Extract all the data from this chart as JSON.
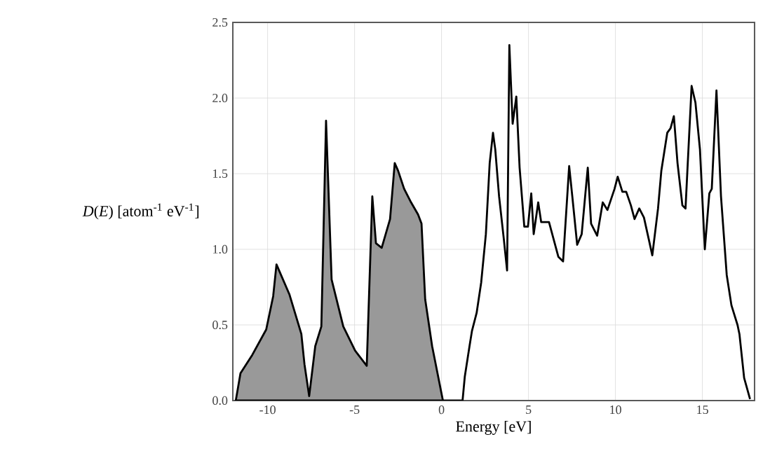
{
  "chart_data": {
    "type": "line",
    "xlabel": "Energy [eV]",
    "ylabel": "*D*(*E*) [atom$^{-1}$ eV$^{-1}$]",
    "xlim": [
      -12,
      18
    ],
    "ylim": [
      0,
      2.5
    ],
    "xticks": [
      -10,
      -5,
      0,
      5,
      10,
      15
    ],
    "yticks": [
      {
        "value": 0,
        "label": "0.0"
      },
      0.5,
      {
        "value": 1,
        "label": "1.0"
      },
      1.5,
      {
        "value": 2,
        "label": "2.0"
      },
      2.5
    ],
    "grid": true,
    "series": [
      {
        "type": "area",
        "color": "#999999",
        "x": [
          -11.83,
          -11.56,
          -10.89,
          -10.08,
          -9.68,
          -9.49,
          -8.74,
          -8.06,
          -7.88,
          -7.61,
          -7.26,
          -6.91,
          -6.64,
          -6.32,
          -5.65,
          -4.97,
          -4.3,
          -3.98,
          -3.77,
          -3.44,
          -2.96,
          -2.69,
          -2.5,
          -2.15,
          -1.75,
          -1.35,
          -1.15,
          -0.94,
          -0.54,
          0.08
        ],
        "values": [
          0,
          0.18,
          0.3,
          0.47,
          0.69,
          0.9,
          0.7,
          0.44,
          0.24,
          0.03,
          0.36,
          0.49,
          1.85,
          0.8,
          0.49,
          0.33,
          0.23,
          1.35,
          1.04,
          1.01,
          1.2,
          1.57,
          1.52,
          1.4,
          1.31,
          1.23,
          1.17,
          0.67,
          0.36,
          0
        ]
      },
      {
        "color": "#000000",
        "x": [
          0.08,
          1.21,
          1.34,
          1.61,
          1.75,
          2.02,
          2.28,
          2.55,
          2.77,
          2.96,
          3.09,
          3.31,
          3.58,
          3.77,
          3.9,
          4.09,
          4.3,
          4.49,
          4.76,
          4.97,
          5.16,
          5.3,
          5.56,
          5.73,
          6.18,
          6.72,
          6.99,
          7.34,
          7.52,
          7.8,
          8.06,
          8.25,
          8.41,
          8.6,
          8.95,
          9.27,
          9.54,
          9.95,
          10.13,
          10.4,
          10.62,
          10.89,
          11.1,
          11.37,
          11.64,
          11.91,
          12.12,
          12.45,
          12.64,
          12.98,
          13.17,
          13.36,
          13.57,
          13.85,
          14.03,
          14.38,
          14.6,
          14.86,
          15.14,
          15.4,
          15.54,
          15.81,
          16.07,
          16.4,
          16.67,
          17.02,
          17.13,
          17.4,
          17.74
        ],
        "values": [
          0,
          0,
          0.16,
          0.36,
          0.46,
          0.58,
          0.78,
          1.1,
          1.57,
          1.77,
          1.66,
          1.35,
          1.07,
          0.86,
          2.35,
          1.83,
          2.01,
          1.54,
          1.15,
          1.15,
          1.37,
          1.1,
          1.31,
          1.18,
          1.18,
          0.95,
          0.92,
          1.55,
          1.35,
          1.03,
          1.1,
          1.34,
          1.54,
          1.17,
          1.09,
          1.31,
          1.26,
          1.4,
          1.48,
          1.38,
          1.38,
          1.29,
          1.2,
          1.27,
          1.21,
          1.07,
          0.96,
          1.27,
          1.52,
          1.77,
          1.8,
          1.88,
          1.57,
          1.29,
          1.27,
          2.08,
          1.97,
          1.66,
          1.0,
          1.37,
          1.4,
          2.05,
          1.35,
          0.83,
          0.63,
          0.5,
          0.44,
          0.15,
          0.01
        ]
      }
    ]
  }
}
